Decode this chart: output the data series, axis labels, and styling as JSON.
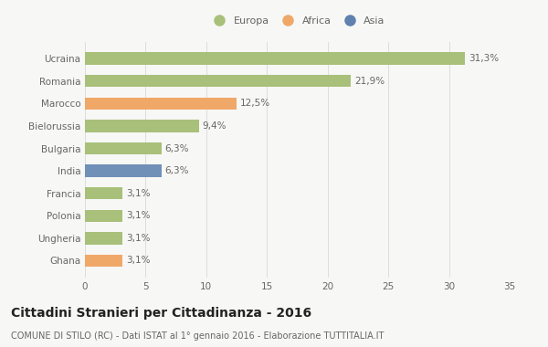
{
  "categories": [
    "Ucraina",
    "Romania",
    "Marocco",
    "Bielorussia",
    "Bulgaria",
    "India",
    "Francia",
    "Polonia",
    "Ungheria",
    "Ghana"
  ],
  "values": [
    31.3,
    21.9,
    12.5,
    9.4,
    6.3,
    6.3,
    3.1,
    3.1,
    3.1,
    3.1
  ],
  "labels": [
    "31,3%",
    "21,9%",
    "12,5%",
    "9,4%",
    "6,3%",
    "6,3%",
    "3,1%",
    "3,1%",
    "3,1%",
    "3,1%"
  ],
  "colors": [
    "#a8c07a",
    "#a8c07a",
    "#f0a868",
    "#a8c07a",
    "#a8c07a",
    "#7090b8",
    "#a8c07a",
    "#a8c07a",
    "#a8c07a",
    "#f0a868"
  ],
  "legend": [
    {
      "label": "Europa",
      "color": "#a8c07a"
    },
    {
      "label": "Africa",
      "color": "#f0a868"
    },
    {
      "label": "Asia",
      "color": "#6080b0"
    }
  ],
  "xlim": [
    0,
    35
  ],
  "xticks": [
    0,
    5,
    10,
    15,
    20,
    25,
    30,
    35
  ],
  "title": "Cittadini Stranieri per Cittadinanza - 2016",
  "subtitle": "COMUNE DI STILO (RC) - Dati ISTAT al 1° gennaio 2016 - Elaborazione TUTTITALIA.IT",
  "background_color": "#f7f7f5",
  "bar_height": 0.55,
  "grid_color": "#dddddd",
  "title_fontsize": 10,
  "subtitle_fontsize": 7,
  "label_fontsize": 7.5,
  "tick_fontsize": 7.5,
  "legend_fontsize": 8
}
